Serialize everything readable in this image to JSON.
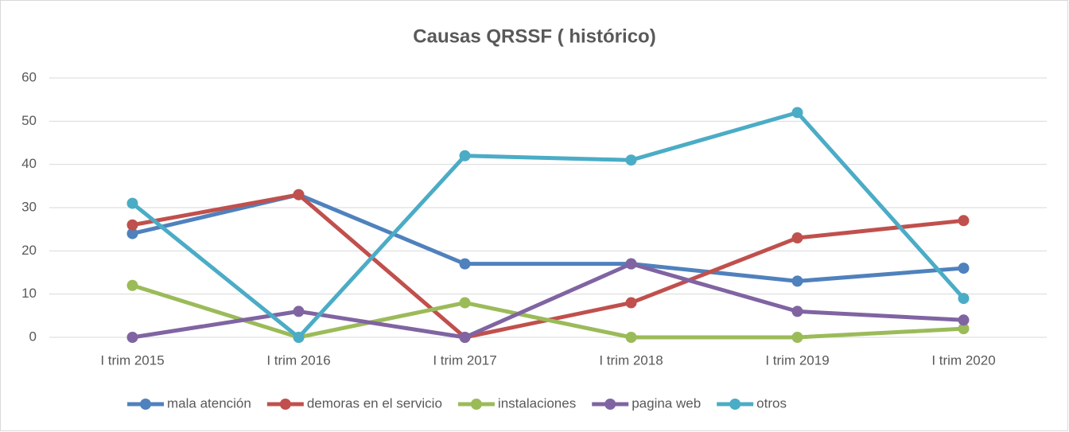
{
  "chart_data": {
    "type": "line",
    "title": "Causas QRSSF ( histórico)",
    "categories": [
      "I trim 2015",
      "I trim 2016",
      "I trim 2017",
      "I trim 2018",
      "I trim 2019",
      "I trim 2020"
    ],
    "series": [
      {
        "name": "mala atención",
        "color": "#4f81bd",
        "values": [
          24,
          33,
          17,
          17,
          13,
          16
        ]
      },
      {
        "name": "demoras en el servicio",
        "color": "#c0504d",
        "values": [
          26,
          33,
          0,
          8,
          23,
          27
        ]
      },
      {
        "name": "instalaciones",
        "color": "#9bbb59",
        "values": [
          12,
          0,
          8,
          0,
          0,
          2
        ]
      },
      {
        "name": "pagina web",
        "color": "#8064a2",
        "values": [
          0,
          6,
          0,
          17,
          6,
          4
        ]
      },
      {
        "name": "otros",
        "color": "#4bacc6",
        "values": [
          31,
          0,
          42,
          41,
          52,
          9
        ]
      }
    ],
    "ylim": [
      0,
      60
    ],
    "yticks": [
      0,
      10,
      20,
      30,
      40,
      50,
      60
    ],
    "grid": true,
    "legend": "bottom"
  }
}
